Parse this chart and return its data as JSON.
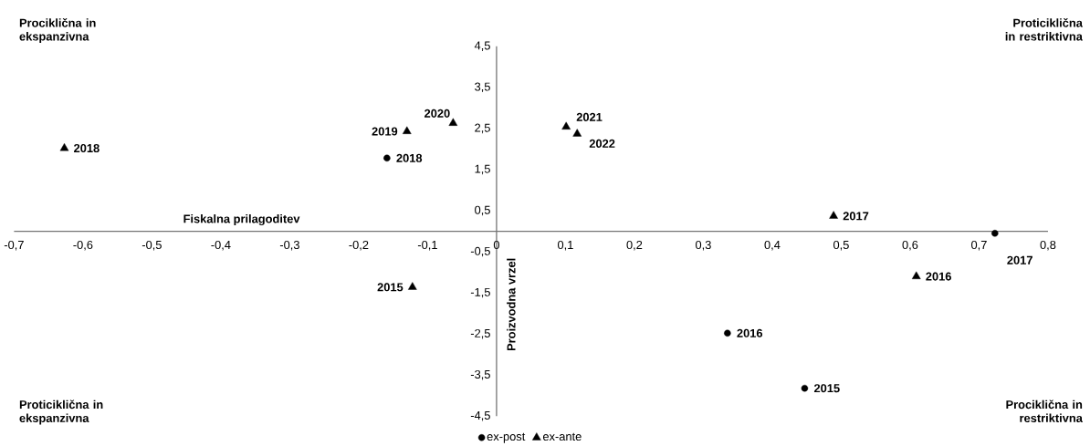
{
  "chart_data": {
    "type": "scatter",
    "xlabel": "Fiskalna prilagoditev",
    "ylabel": "Proizvodna vrzel",
    "xlim": [
      -0.7,
      0.8
    ],
    "ylim": [
      -4.5,
      4.5
    ],
    "xticks": [
      {
        "value": -0.7,
        "label": "-0,7"
      },
      {
        "value": -0.6,
        "label": "-0,6"
      },
      {
        "value": -0.5,
        "label": "-0,5"
      },
      {
        "value": -0.4,
        "label": "-0,4"
      },
      {
        "value": -0.3,
        "label": "-0,3"
      },
      {
        "value": -0.2,
        "label": "-0,2"
      },
      {
        "value": -0.1,
        "label": "-0,1"
      },
      {
        "value": 0,
        "label": "0"
      },
      {
        "value": 0.1,
        "label": "0,1"
      },
      {
        "value": 0.2,
        "label": "0,2"
      },
      {
        "value": 0.3,
        "label": "0,3"
      },
      {
        "value": 0.4,
        "label": "0,4"
      },
      {
        "value": 0.5,
        "label": "0,5"
      },
      {
        "value": 0.6,
        "label": "0,6"
      },
      {
        "value": 0.7,
        "label": "0,7"
      },
      {
        "value": 0.8,
        "label": "0,8"
      }
    ],
    "yticks": [
      {
        "value": -4.5,
        "label": "-4,5"
      },
      {
        "value": -3.5,
        "label": "-3,5"
      },
      {
        "value": -2.5,
        "label": "-2,5"
      },
      {
        "value": -1.5,
        "label": "-1,5"
      },
      {
        "value": -0.5,
        "label": "-0,5"
      },
      {
        "value": 0.5,
        "label": "0,5"
      },
      {
        "value": 1.5,
        "label": "1,5"
      },
      {
        "value": 2.5,
        "label": "2,5"
      },
      {
        "value": 3.5,
        "label": "3,5"
      },
      {
        "value": 4.5,
        "label": "4,5"
      }
    ],
    "series": [
      {
        "name": "ex-post",
        "color": "#000000",
        "marker": "circle",
        "x": [
          0.447,
          0.335,
          0.723,
          -0.159
        ],
        "values": [
          -3.82,
          -2.48,
          -0.05,
          1.78
        ]
      },
      {
        "name": "ex-ante",
        "color": "#000000",
        "marker": "triangle",
        "x": [
          -0.122,
          0.609,
          0.489,
          -0.627,
          -0.13,
          -0.063,
          0.101,
          0.117
        ],
        "values": [
          -1.36,
          -1.1,
          0.37,
          2.02,
          2.43,
          2.63,
          2.54,
          2.37
        ]
      }
    ],
    "legend": "bottom",
    "annotations": [
      "Prociklična in ekspanzivna",
      "Proticiklična in restriktivna",
      "Proticiklična in ekspanzivna",
      "Prociklična in restriktivna",
      {
        "text": "2015",
        "x": 0.447,
        "y": -3.82
      },
      {
        "text": "2016",
        "x": 0.335,
        "y": -2.48
      },
      {
        "text": "2017",
        "x": 0.723,
        "y": -0.05
      },
      {
        "text": "2018",
        "x": -0.159,
        "y": 1.78
      },
      {
        "text": "2015",
        "x": -0.122,
        "y": -1.36
      },
      {
        "text": "2016",
        "x": 0.609,
        "y": -1.1
      },
      {
        "text": "2017",
        "x": 0.489,
        "y": 0.37
      },
      {
        "text": "2018",
        "x": -0.627,
        "y": 2.02
      },
      {
        "text": "2019",
        "x": -0.13,
        "y": 2.43
      },
      {
        "text": "2020",
        "x": -0.063,
        "y": 2.63
      },
      {
        "text": "2021",
        "x": 0.101,
        "y": 2.54
      },
      {
        "text": "2022",
        "x": 0.117,
        "y": 2.37
      }
    ]
  }
}
